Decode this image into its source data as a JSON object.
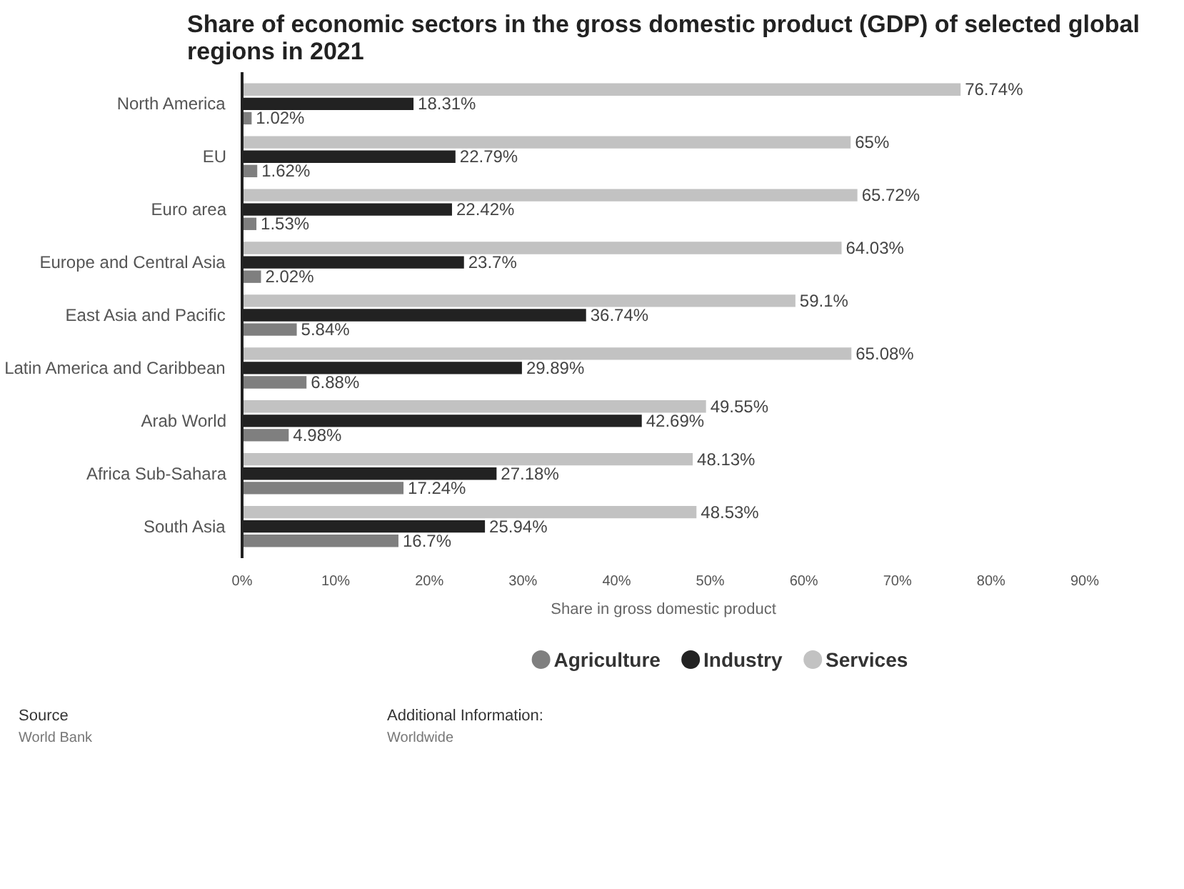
{
  "chart_data": {
    "type": "bar",
    "orientation": "horizontal",
    "title": "Share of economic sectors in the gross domestic product (GDP) of selected global\nregions in 2021",
    "xlabel": "Share in gross domestic product",
    "categories": [
      "North America",
      "EU",
      "Euro area",
      "Europe and Central Asia",
      "East Asia and Pacific",
      "Latin America and Caribbean",
      "Arab World",
      "Africa Sub-Sahara",
      "South Asia"
    ],
    "series": [
      {
        "name": "Agriculture",
        "color": "#7f7f7f",
        "values": [
          1.02,
          1.62,
          1.53,
          2.02,
          5.84,
          6.88,
          4.98,
          17.24,
          16.7
        ],
        "value_labels": [
          "1.02%",
          "1.62%",
          "1.53%",
          "2.02%",
          "5.84%",
          "6.88%",
          "4.98%",
          "17.24%",
          "16.7%"
        ]
      },
      {
        "name": "Industry",
        "color": "#222222",
        "values": [
          18.31,
          22.79,
          22.42,
          23.7,
          36.74,
          29.89,
          42.69,
          27.18,
          25.94
        ],
        "value_labels": [
          "18.31%",
          "22.79%",
          "22.42%",
          "23.7%",
          "36.74%",
          "29.89%",
          "42.69%",
          "27.18%",
          "25.94%"
        ]
      },
      {
        "name": "Services",
        "color": "#c2c2c2",
        "values": [
          76.74,
          65,
          65.72,
          64.03,
          59.1,
          65.08,
          49.55,
          48.13,
          48.53
        ],
        "value_labels": [
          "76.74%",
          "65%",
          "65.72%",
          "64.03%",
          "59.1%",
          "65.08%",
          "49.55%",
          "48.13%",
          "48.53%"
        ]
      }
    ],
    "xlim": [
      0,
      90
    ],
    "xticks": [
      {
        "value": 0,
        "label": "0%"
      },
      {
        "value": 10,
        "label": "10%"
      },
      {
        "value": 20,
        "label": "20%"
      },
      {
        "value": 30,
        "label": "30%"
      },
      {
        "value": 40,
        "label": "40%"
      },
      {
        "value": 50,
        "label": "50%"
      },
      {
        "value": 60,
        "label": "60%"
      },
      {
        "value": 70,
        "label": "70%"
      },
      {
        "value": 80,
        "label": "80%"
      },
      {
        "value": 90,
        "label": "90%"
      }
    ],
    "grid": false,
    "legend": "bottom",
    "annotations": [
      "Source",
      "World Bank",
      "Additional Information:",
      "Worldwide"
    ]
  }
}
